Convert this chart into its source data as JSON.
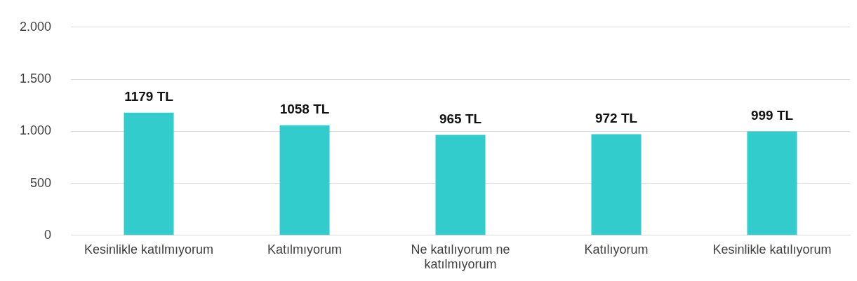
{
  "chart_data": {
    "type": "bar",
    "categories": [
      "Kesinlikle katılmıyorum",
      "Katılmıyorum",
      "Ne katılıyorum ne katılmıyorum",
      "Katılıyorum",
      "Kesinlikle katılıyorum"
    ],
    "values": [
      1179,
      1058,
      965,
      972,
      999
    ],
    "value_labels": [
      "1179 TL",
      "1058 TL",
      "965 TL",
      "972 TL",
      "999 TL"
    ],
    "color": "#33cccc",
    "ylim": [
      0,
      2000
    ],
    "yticks": [
      {
        "value": 0,
        "label": "0"
      },
      {
        "value": 500,
        "label": "500"
      },
      {
        "value": 1000,
        "label": "1.000"
      },
      {
        "value": 1500,
        "label": "1.500"
      },
      {
        "value": 2000,
        "label": "2.000"
      }
    ],
    "grid": "y",
    "legend": false
  }
}
